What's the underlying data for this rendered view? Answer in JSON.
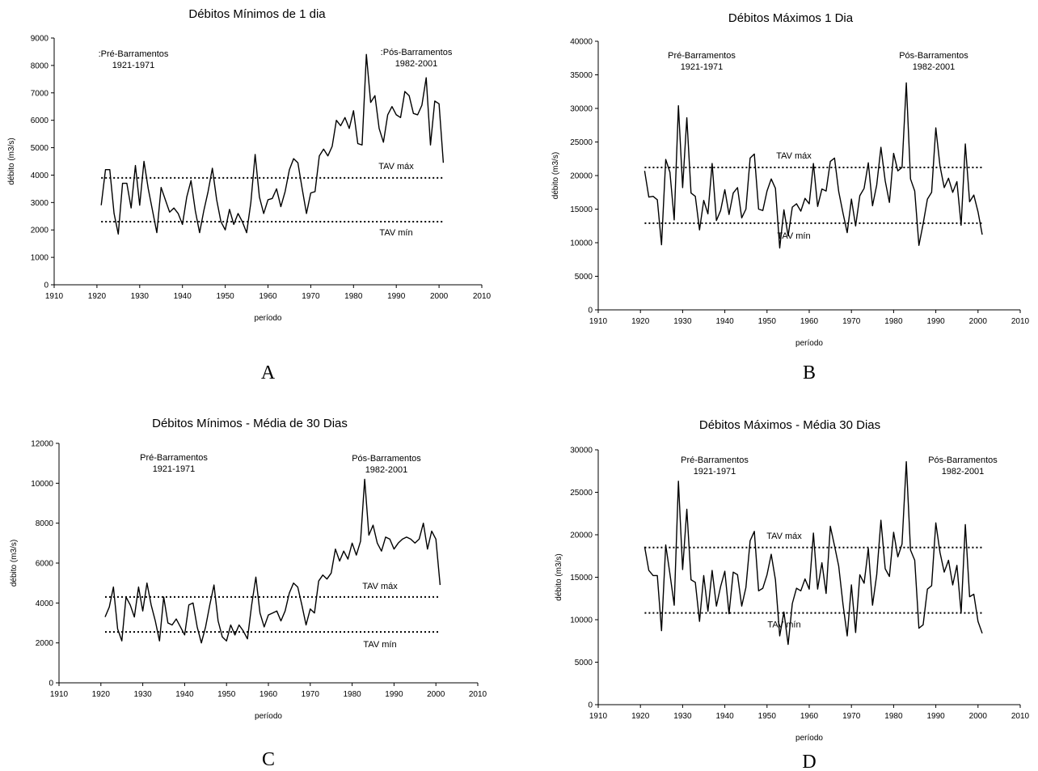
{
  "chart_data": [
    {
      "panel_label": "A",
      "type": "line",
      "title": "Débitos Mínimos de 1 dia",
      "xlabel": "período",
      "ylabel": "débito (m3/s)",
      "xlim": [
        1910,
        2010
      ],
      "ylim": [
        0,
        9000
      ],
      "xticks": [
        1910,
        1920,
        1930,
        1940,
        1950,
        1960,
        1970,
        1980,
        1990,
        2000,
        2010
      ],
      "yticks": [
        0,
        1000,
        2000,
        3000,
        4000,
        5000,
        6000,
        7000,
        8000,
        9000
      ],
      "reference_lines": [
        {
          "label": "TAV máx",
          "value": 3900,
          "x_range": [
            1921,
            2001
          ]
        },
        {
          "label": "TAV mín",
          "value": 2300,
          "x_range": [
            1921,
            2001
          ]
        }
      ],
      "annotations": [
        {
          "lines": [
            ":Pré-Barramentos",
            "1921-1971"
          ]
        },
        {
          "lines": [
            ":Pós-Barramentos",
            "1982-2001"
          ]
        }
      ],
      "x": [
        1921,
        1922,
        1923,
        1924,
        1925,
        1926,
        1927,
        1928,
        1929,
        1930,
        1931,
        1932,
        1933,
        1934,
        1935,
        1936,
        1937,
        1938,
        1939,
        1940,
        1941,
        1942,
        1943,
        1944,
        1945,
        1946,
        1947,
        1948,
        1949,
        1950,
        1951,
        1952,
        1953,
        1954,
        1955,
        1956,
        1957,
        1958,
        1959,
        1960,
        1961,
        1962,
        1963,
        1964,
        1965,
        1966,
        1967,
        1968,
        1969,
        1970,
        1971,
        1972,
        1973,
        1974,
        1975,
        1976,
        1977,
        1978,
        1979,
        1980,
        1981,
        1982,
        1983,
        1984,
        1985,
        1986,
        1987,
        1988,
        1989,
        1990,
        1991,
        1992,
        1993,
        1994,
        1995,
        1996,
        1997,
        1998,
        1999,
        2000,
        2001
      ],
      "values": [
        2900,
        4200,
        4200,
        2600,
        1850,
        3700,
        3700,
        2800,
        4350,
        2900,
        4500,
        3500,
        2700,
        1900,
        3550,
        3100,
        2650,
        2800,
        2600,
        2200,
        3200,
        3800,
        2700,
        1900,
        2700,
        3400,
        4250,
        3100,
        2300,
        2000,
        2750,
        2200,
        2600,
        2300,
        1900,
        3000,
        4750,
        3200,
        2600,
        3100,
        3150,
        3500,
        2850,
        3400,
        4200,
        4600,
        4450,
        3500,
        2600,
        3350,
        3400,
        4700,
        4950,
        4700,
        5050,
        6000,
        5800,
        6100,
        5700,
        6350,
        5150,
        5100,
        8400,
        6650,
        6900,
        5700,
        5200,
        6200,
        6500,
        6200,
        6100,
        7050,
        6900,
        6250,
        6200,
        6550,
        7550,
        5100,
        6700,
        6600,
        4450
      ]
    },
    {
      "panel_label": "B",
      "type": "line",
      "title": "Débitos Máximos 1 Dia",
      "xlabel": "período",
      "ylabel": "débito (m3/s)",
      "xlim": [
        1910,
        2010
      ],
      "ylim": [
        0,
        40000
      ],
      "xticks": [
        1910,
        1920,
        1930,
        1940,
        1950,
        1960,
        1970,
        1980,
        1990,
        2000,
        2010
      ],
      "yticks": [
        0,
        5000,
        10000,
        15000,
        20000,
        25000,
        30000,
        35000,
        40000
      ],
      "reference_lines": [
        {
          "label": "TAV máx",
          "value": 21200,
          "x_range": [
            1921,
            2001
          ]
        },
        {
          "label": "TAV mín",
          "value": 12900,
          "x_range": [
            1921,
            2001
          ]
        }
      ],
      "annotations": [
        {
          "lines": [
            "Pré-Barramentos",
            "1921-1971"
          ]
        },
        {
          "lines": [
            "Pós-Barramentos",
            "1982-2001"
          ]
        }
      ],
      "x": [
        1921,
        1922,
        1923,
        1924,
        1925,
        1926,
        1927,
        1928,
        1929,
        1930,
        1931,
        1932,
        1933,
        1934,
        1935,
        1936,
        1937,
        1938,
        1939,
        1940,
        1941,
        1942,
        1943,
        1944,
        1945,
        1946,
        1947,
        1948,
        1949,
        1950,
        1951,
        1952,
        1953,
        1954,
        1955,
        1956,
        1957,
        1958,
        1959,
        1960,
        1961,
        1962,
        1963,
        1964,
        1965,
        1966,
        1967,
        1968,
        1969,
        1970,
        1971,
        1972,
        1973,
        1974,
        1975,
        1976,
        1977,
        1978,
        1979,
        1980,
        1981,
        1982,
        1983,
        1984,
        1985,
        1986,
        1987,
        1988,
        1989,
        1990,
        1991,
        1992,
        1993,
        1994,
        1995,
        1996,
        1997,
        1998,
        1999,
        2000,
        2001
      ],
      "values": [
        20700,
        16800,
        16900,
        16400,
        9700,
        22400,
        20500,
        13400,
        30400,
        18200,
        28600,
        17400,
        16900,
        11900,
        16300,
        14300,
        21800,
        13300,
        14800,
        17900,
        14200,
        17400,
        18200,
        13700,
        15000,
        22600,
        23200,
        15000,
        14800,
        17700,
        19500,
        18100,
        9200,
        14900,
        11000,
        15300,
        15800,
        14700,
        16600,
        15800,
        21800,
        15400,
        18000,
        17700,
        22100,
        22600,
        17600,
        14400,
        11500,
        16500,
        12500,
        17000,
        18100,
        21900,
        15500,
        18600,
        24200,
        19200,
        16000,
        23300,
        20700,
        21200,
        33800,
        19500,
        17700,
        9600,
        12800,
        16500,
        17500,
        27100,
        21400,
        18200,
        19600,
        17500,
        19100,
        12600,
        24700,
        16100,
        17100,
        14600,
        11200
      ]
    },
    {
      "panel_label": "C",
      "type": "line",
      "title": "Débitos Mínimos - Média de 30 Dias",
      "xlabel": "período",
      "ylabel": "débito (m3/s)",
      "xlim": [
        1910,
        2010
      ],
      "ylim": [
        0,
        12000
      ],
      "xticks": [
        1910,
        1920,
        1930,
        1940,
        1950,
        1960,
        1970,
        1980,
        1990,
        2000,
        2010
      ],
      "yticks": [
        0,
        2000,
        4000,
        6000,
        8000,
        10000,
        12000
      ],
      "reference_lines": [
        {
          "label": "TAV máx",
          "value": 4300,
          "x_range": [
            1921,
            2001
          ]
        },
        {
          "label": "TAV mín",
          "value": 2550,
          "x_range": [
            1921,
            2001
          ]
        }
      ],
      "annotations": [
        {
          "lines": [
            "Pré-Barramentos",
            "1921-1971"
          ]
        },
        {
          "lines": [
            "Pós-Barramentos",
            "1982-2001"
          ]
        }
      ],
      "x": [
        1921,
        1922,
        1923,
        1924,
        1925,
        1926,
        1927,
        1928,
        1929,
        1930,
        1931,
        1932,
        1933,
        1934,
        1935,
        1936,
        1937,
        1938,
        1939,
        1940,
        1941,
        1942,
        1943,
        1944,
        1945,
        1946,
        1947,
        1948,
        1949,
        1950,
        1951,
        1952,
        1953,
        1954,
        1955,
        1956,
        1957,
        1958,
        1959,
        1960,
        1961,
        1962,
        1963,
        1964,
        1965,
        1966,
        1967,
        1968,
        1969,
        1970,
        1971,
        1972,
        1973,
        1974,
        1975,
        1976,
        1977,
        1978,
        1979,
        1980,
        1981,
        1982,
        1983,
        1984,
        1985,
        1986,
        1987,
        1988,
        1989,
        1990,
        1991,
        1992,
        1993,
        1994,
        1995,
        1996,
        1997,
        1998,
        1999,
        2000,
        2001
      ],
      "values": [
        3300,
        3800,
        4800,
        2700,
        2100,
        4300,
        3900,
        3300,
        4800,
        3600,
        5000,
        3900,
        3100,
        2100,
        4300,
        3000,
        2900,
        3200,
        2800,
        2400,
        3900,
        4000,
        2800,
        2000,
        2800,
        3900,
        4900,
        3100,
        2300,
        2100,
        2900,
        2400,
        2900,
        2600,
        2200,
        3900,
        5300,
        3500,
        2800,
        3400,
        3500,
        3600,
        3100,
        3600,
        4500,
        5000,
        4800,
        3900,
        2900,
        3700,
        3500,
        5100,
        5400,
        5200,
        5500,
        6700,
        6100,
        6600,
        6200,
        7000,
        6400,
        7100,
        10200,
        7400,
        7900,
        7000,
        6600,
        7300,
        7200,
        6700,
        7000,
        7200,
        7300,
        7200,
        7000,
        7200,
        8000,
        6700,
        7600,
        7200,
        4900
      ]
    },
    {
      "panel_label": "D",
      "type": "line",
      "title": "Débitos Máximos - Média 30 Dias",
      "xlabel": "período",
      "ylabel": "débito (m3/s)",
      "xlim": [
        1910,
        2010
      ],
      "ylim": [
        0,
        30000
      ],
      "xticks": [
        1910,
        1920,
        1930,
        1940,
        1950,
        1960,
        1970,
        1980,
        1990,
        2000,
        2010
      ],
      "yticks": [
        0,
        5000,
        10000,
        15000,
        20000,
        25000,
        30000
      ],
      "reference_lines": [
        {
          "label": "TAV máx",
          "value": 18500,
          "x_range": [
            1921,
            2001
          ]
        },
        {
          "label": "TAV mín",
          "value": 10800,
          "x_range": [
            1921,
            2001
          ]
        }
      ],
      "annotations": [
        {
          "lines": [
            "Pré-Barramentos",
            "1921-1971"
          ]
        },
        {
          "lines": [
            "Pós-Barramentos",
            "1982-2001"
          ]
        }
      ],
      "x": [
        1921,
        1922,
        1923,
        1924,
        1925,
        1926,
        1927,
        1928,
        1929,
        1930,
        1931,
        1932,
        1933,
        1934,
        1935,
        1936,
        1937,
        1938,
        1939,
        1940,
        1941,
        1942,
        1943,
        1944,
        1945,
        1946,
        1947,
        1948,
        1949,
        1950,
        1951,
        1952,
        1953,
        1954,
        1955,
        1956,
        1957,
        1958,
        1959,
        1960,
        1961,
        1962,
        1963,
        1964,
        1965,
        1966,
        1967,
        1968,
        1969,
        1970,
        1971,
        1972,
        1973,
        1974,
        1975,
        1976,
        1977,
        1978,
        1979,
        1980,
        1981,
        1982,
        1983,
        1984,
        1985,
        1986,
        1987,
        1988,
        1989,
        1990,
        1991,
        1992,
        1993,
        1994,
        1995,
        1996,
        1997,
        1998,
        1999,
        2000,
        2001
      ],
      "values": [
        18600,
        15800,
        15200,
        15200,
        8700,
        18800,
        15400,
        11700,
        26300,
        15900,
        23000,
        14700,
        14400,
        9800,
        15200,
        11000,
        15800,
        11600,
        13900,
        15700,
        10700,
        15600,
        15300,
        11600,
        13800,
        19300,
        20400,
        13400,
        13700,
        15300,
        17700,
        14700,
        8100,
        10900,
        7100,
        11900,
        13700,
        13400,
        14800,
        13600,
        20200,
        13600,
        16700,
        13100,
        21000,
        18700,
        16300,
        11800,
        8100,
        14100,
        8500,
        15300,
        14300,
        18400,
        11700,
        15300,
        21700,
        16000,
        15100,
        20300,
        17400,
        18900,
        28600,
        18200,
        17000,
        9000,
        9400,
        13600,
        14000,
        21400,
        17900,
        15600,
        17000,
        14100,
        16400,
        10800,
        21200,
        12700,
        13000,
        9800,
        8400
      ]
    }
  ]
}
